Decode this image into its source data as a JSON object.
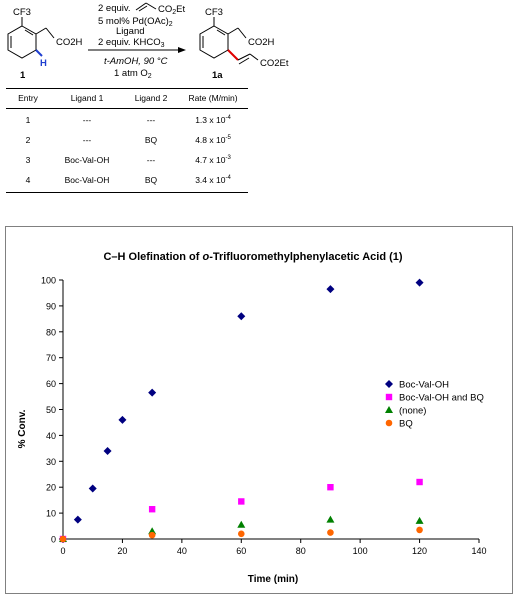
{
  "scheme": {
    "reagent_equiv": "2 equiv.",
    "acrylate_label": "CO",
    "acrylate_sub": "2",
    "acrylate_tail": "Et",
    "catalyst": "5 mol% Pd(OAc)",
    "catalyst_sub": "2",
    "ligand": "Ligand",
    "base": "2 equiv. KHCO",
    "base_sub": "3",
    "solvent": "t-AmOH, 90 °C",
    "atmosphere": "1 atm O",
    "atmosphere_sub": "2",
    "substrate_label": "1",
    "product_label": "1a",
    "cf3": "CF3",
    "acid": "CO2H",
    "h_atom": "H",
    "ester": "CO2Et"
  },
  "table": {
    "headers": [
      "Entry",
      "Ligand 1",
      "Ligand 2",
      "Rate (M/min)"
    ],
    "rows": [
      {
        "entry": "1",
        "ligand1": "---",
        "ligand2": "---",
        "rate_mant": "1.3 x 10",
        "rate_exp": "-4"
      },
      {
        "entry": "2",
        "ligand1": "---",
        "ligand2": "BQ",
        "rate_mant": "4.8 x 10",
        "rate_exp": "-5"
      },
      {
        "entry": "3",
        "ligand1": "Boc-Val-OH",
        "ligand2": "---",
        "rate_mant": "4.7 x 10",
        "rate_exp": "-3"
      },
      {
        "entry": "4",
        "ligand1": "Boc-Val-OH",
        "ligand2": "BQ",
        "rate_mant": "3.4 x 10",
        "rate_exp": "-4"
      }
    ]
  },
  "chart_data": {
    "type": "scatter",
    "title_prefix": "C–H Olefination of ",
    "title_italic": "o",
    "title_suffix": "-Trifluoromethylphenylacetic Acid (1)",
    "xlabel": "Time (min)",
    "ylabel": "% Conv.",
    "xlim": [
      0,
      140
    ],
    "ylim": [
      0,
      100
    ],
    "xticks": [
      0,
      20,
      40,
      60,
      80,
      100,
      120,
      140
    ],
    "yticks": [
      0,
      10,
      20,
      30,
      40,
      50,
      60,
      70,
      80,
      90,
      100
    ],
    "legend_position": "right",
    "series": [
      {
        "name": "Boc-Val-OH",
        "marker": "diamond",
        "color": "#000080",
        "points": [
          [
            0,
            0
          ],
          [
            5,
            7.5
          ],
          [
            10,
            19.5
          ],
          [
            15,
            34
          ],
          [
            20,
            46
          ],
          [
            30,
            56.5
          ],
          [
            60,
            86
          ],
          [
            90,
            96.5
          ],
          [
            120,
            99
          ]
        ]
      },
      {
        "name": "Boc-Val-OH and BQ",
        "marker": "square",
        "color": "#ff00ff",
        "points": [
          [
            0,
            0
          ],
          [
            30,
            11.5
          ],
          [
            60,
            14.5
          ],
          [
            90,
            20
          ],
          [
            120,
            22
          ]
        ]
      },
      {
        "name": "(none)",
        "marker": "triangle",
        "color": "#008000",
        "points": [
          [
            0,
            0
          ],
          [
            30,
            3
          ],
          [
            60,
            5.5
          ],
          [
            90,
            7.5
          ],
          [
            120,
            7
          ]
        ]
      },
      {
        "name": "BQ",
        "marker": "circle",
        "color": "#ff6600",
        "points": [
          [
            0,
            0
          ],
          [
            30,
            1.5
          ],
          [
            60,
            2
          ],
          [
            90,
            2.5
          ],
          [
            120,
            3.5
          ]
        ]
      }
    ]
  }
}
